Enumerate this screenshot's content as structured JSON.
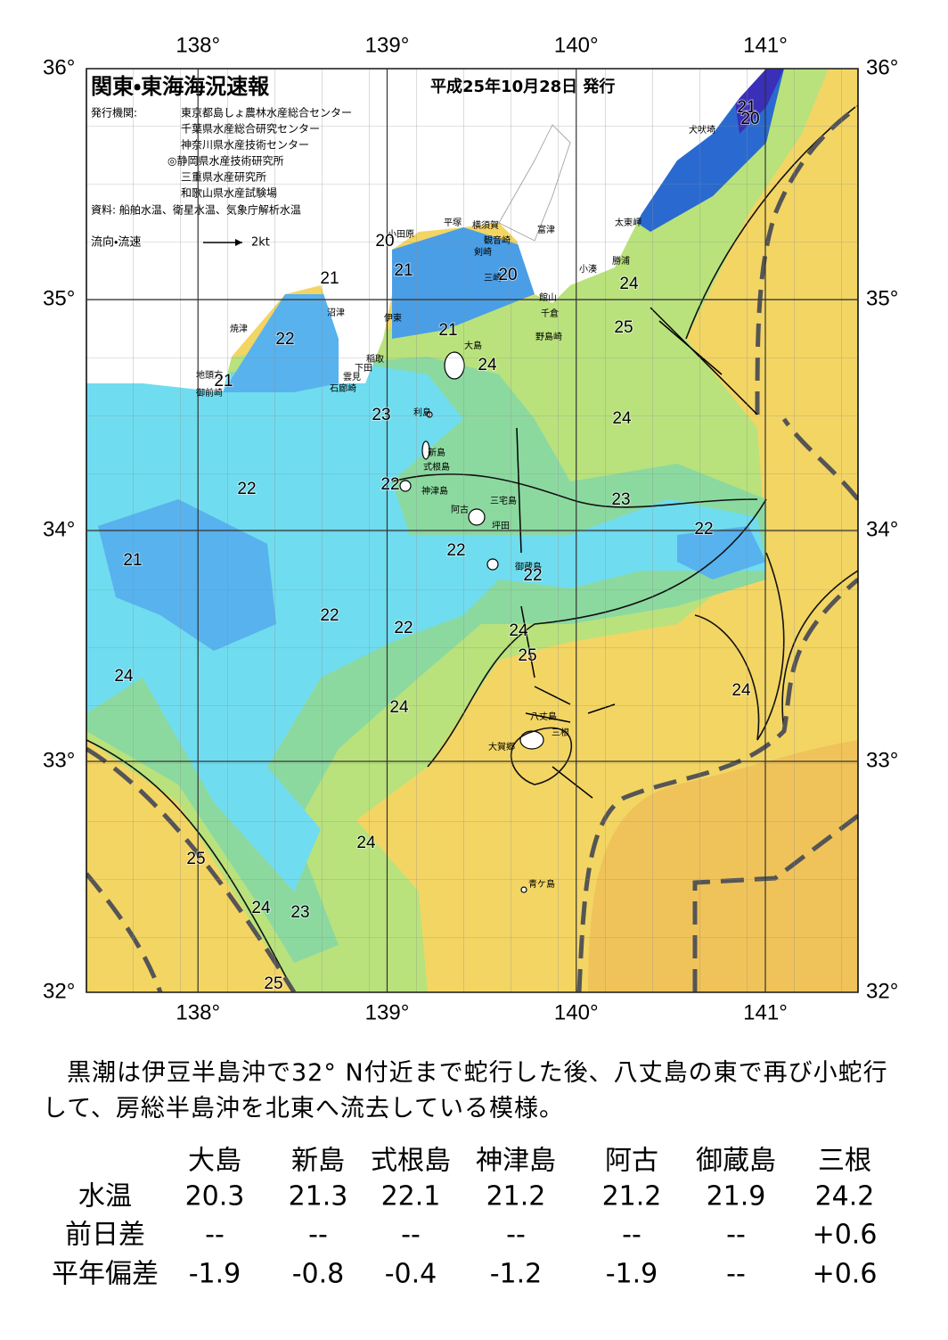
{
  "map": {
    "title": "関東・東海海況速報",
    "issued": "平成25年10月28日 発行",
    "publisher_label": "発行機関:",
    "publishers": [
      "東京都島しょ農林水産総合センター",
      "千葉県水産総合研究センター",
      "神奈川県水産技術センター",
      "◎静岡県水産技術研究所",
      "三重県水産研究所",
      "和歌山県水産試験場"
    ],
    "sources": "資料: 船舶水温、衛星水温、気象庁解析水温",
    "current_legend": "流向・流速",
    "current_scale": "2kt",
    "lon_range": [
      137.41,
      141.49
    ],
    "lat_range": [
      32,
      36
    ],
    "lon_ticks": [
      {
        "value": 138,
        "label": "138°"
      },
      {
        "value": 139,
        "label": "139°"
      },
      {
        "value": 140,
        "label": "140°"
      },
      {
        "value": 141,
        "label": "141°"
      }
    ],
    "lat_ticks": [
      {
        "value": 36,
        "label": "36°"
      },
      {
        "value": 35,
        "label": "35°"
      },
      {
        "value": 34,
        "label": "34°"
      },
      {
        "value": 33,
        "label": "33°"
      },
      {
        "value": 32,
        "label": "32°"
      }
    ],
    "places": [
      "犬吠埼",
      "太東岬",
      "平塚",
      "横須賀",
      "観音崎",
      "富津",
      "小田原",
      "剣崎",
      "勝浦",
      "小湊",
      "三崎",
      "館山",
      "千倉",
      "野島崎",
      "沼津",
      "伊東",
      "焼津",
      "大島",
      "稲取",
      "下田",
      "雲見",
      "石廊崎",
      "地頭方",
      "御前崎",
      "利島",
      "新島",
      "式根島",
      "神津島",
      "三宅島",
      "阿古",
      "坪田",
      "御蔵島",
      "八丈島",
      "三根",
      "大賀郷",
      "青ケ島"
    ],
    "temperatures": [
      21,
      20,
      20,
      21,
      21,
      20,
      22,
      21,
      24,
      25,
      24,
      21,
      23,
      24,
      22,
      22,
      23,
      21,
      22,
      22,
      22,
      22,
      22,
      24,
      25,
      24,
      24,
      24,
      24,
      25,
      24,
      23,
      25
    ]
  },
  "summary": "黒潮は伊豆半島沖で32° N付近まで蛇行した後、八丈島の東で再び小蛇行して、房総半島沖を北東へ流去している模様。",
  "table": {
    "columns": [
      "大島",
      "新島",
      "式根島",
      "神津島",
      "阿古",
      "御蔵島",
      "三根"
    ],
    "rows": [
      {
        "label": "水温",
        "values": [
          "20.3",
          "21.3",
          "22.1",
          "21.2",
          "21.2",
          "21.9",
          "24.2"
        ]
      },
      {
        "label": "前日差",
        "values": [
          "--",
          "--",
          "--",
          "--",
          "--",
          "--",
          "+0.6"
        ]
      },
      {
        "label": "平年偏差",
        "values": [
          "-1.9",
          "-0.8",
          "-0.4",
          "-1.2",
          "-1.9",
          "--",
          "+0.6"
        ]
      }
    ]
  }
}
